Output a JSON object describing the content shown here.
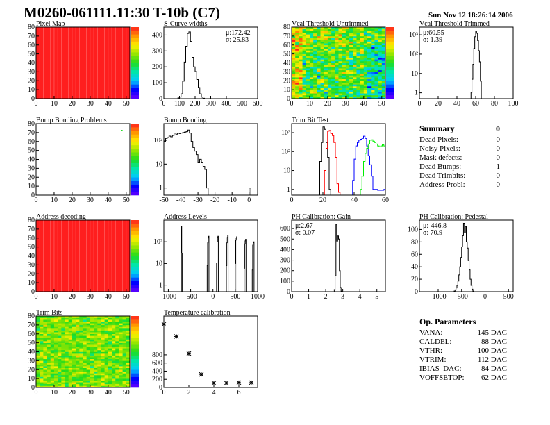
{
  "title": "M0260-061111.11:30 T-10b (C7)",
  "date": "Sun Nov 12 18:26:14 2006",
  "summary": {
    "heading": "Summary",
    "total": "0",
    "rows": [
      {
        "label": "Dead Pixels:",
        "value": "0"
      },
      {
        "label": "Noisy Pixels:",
        "value": "0"
      },
      {
        "label": "Mask defects:",
        "value": "0"
      },
      {
        "label": "Dead Bumps:",
        "value": "1"
      },
      {
        "label": "Dead Trimbits:",
        "value": "0"
      },
      {
        "label": "Address Probl:",
        "value": "0"
      }
    ]
  },
  "op_parameters": {
    "heading": "Op. Parameters",
    "rows": [
      {
        "label": "VANA:",
        "value": "145 DAC"
      },
      {
        "label": "CALDEL:",
        "value": "88 DAC"
      },
      {
        "label": "VTHR:",
        "value": "100 DAC"
      },
      {
        "label": "VTRIM:",
        "value": "112 DAC"
      },
      {
        "label": "IBIAS_DAC:",
        "value": "84 DAC"
      },
      {
        "label": "VOFFSETOP:",
        "value": "62 DAC"
      }
    ]
  },
  "colors": {
    "line": "#000000",
    "trim_red": "#ff0000",
    "trim_blue": "#0000ff",
    "trim_green": "#00ee00"
  },
  "chart_data": [
    {
      "title": "Pixel Map",
      "type": "heatmap",
      "xlim": [
        0,
        52
      ],
      "ylim": [
        0,
        80
      ],
      "xticks": [
        0,
        10,
        20,
        30,
        40,
        50
      ],
      "yticks": [
        0,
        10,
        20,
        30,
        40,
        50,
        60,
        70,
        80
      ],
      "zlim": [
        0,
        10
      ],
      "fill": "uniform",
      "value": 10
    },
    {
      "title": "S-Curve widths",
      "type": "bar",
      "xlim": [
        0,
        600
      ],
      "ylim": [
        0,
        450
      ],
      "xticks": [
        0,
        100,
        200,
        300,
        400,
        500,
        600
      ],
      "yticks": [
        0,
        100,
        200,
        300,
        400
      ],
      "stats": [
        "μ:172.42",
        "σ: 25.83"
      ],
      "stats_pos": "top-right",
      "series": [
        {
          "start": 90,
          "width": 10,
          "values": [
            5,
            10,
            30,
            110,
            230,
            330,
            410,
            420,
            360,
            260,
            200,
            170,
            120,
            70,
            30,
            10,
            3
          ]
        }
      ]
    },
    {
      "title": "Vcal Threshold Untrimmed",
      "type": "heatmap",
      "xlim": [
        0,
        52
      ],
      "ylim": [
        0,
        80
      ],
      "xticks": [
        0,
        10,
        20,
        30,
        40,
        50
      ],
      "yticks": [
        0,
        10,
        20,
        30,
        40,
        50,
        60,
        70,
        80
      ],
      "zlim": [
        85,
        122
      ],
      "fill": "random",
      "mean": 104,
      "spread": 6
    },
    {
      "title": "Vcal Threshold Trimmed",
      "type": "bar",
      "log": true,
      "xlim": [
        0,
        100
      ],
      "ylim": [
        0.5,
        2500
      ],
      "xticks": [
        0,
        20,
        40,
        60,
        80,
        100
      ],
      "yticks": [
        1,
        10,
        100,
        1000
      ],
      "ytick_labels": [
        "1",
        "10",
        "10²",
        "10³"
      ],
      "stats": [
        "μ:60.55",
        "σ: 1.39"
      ],
      "stats_pos": "top-left",
      "series": [
        {
          "start": 55,
          "width": 1,
          "values": [
            1,
            5,
            30,
            200,
            800,
            1500,
            1200,
            500,
            150,
            40,
            4
          ]
        }
      ]
    },
    {
      "title": "Bump Bonding Problems",
      "type": "heatmap",
      "xlim": [
        0,
        52
      ],
      "ylim": [
        0,
        80
      ],
      "xticks": [
        0,
        10,
        20,
        30,
        40,
        50
      ],
      "yticks": [
        0,
        10,
        20,
        30,
        40,
        50,
        60,
        70,
        80
      ],
      "zlim": [
        0,
        2
      ],
      "fill": "points",
      "points": [
        {
          "x": 47,
          "y": 72,
          "z": 1
        }
      ]
    },
    {
      "title": "Bump Bonding",
      "type": "bar",
      "log": true,
      "xlim": [
        -50,
        5
      ],
      "ylim": [
        0.5,
        500
      ],
      "xticks": [
        -50,
        -40,
        -30,
        -20,
        -10,
        0
      ],
      "yticks": [
        1,
        10,
        100
      ],
      "ytick_labels": [
        "1",
        "10",
        "10²"
      ],
      "series": [
        {
          "start": -50,
          "width": 1,
          "values": [
            90,
            120,
            130,
            150,
            140,
            160,
            200,
            180,
            200,
            190,
            200,
            210,
            220,
            230,
            270,
            200,
            90,
            50,
            35,
            25,
            12,
            16,
            12,
            8,
            6,
            1
          ]
        },
        {
          "start": 0,
          "width": 1,
          "values": [
            1
          ]
        }
      ]
    },
    {
      "title": "Trim Bit Test",
      "type": "bar",
      "log": true,
      "xlim": [
        0,
        60
      ],
      "ylim": [
        0.5,
        3000
      ],
      "xticks": [
        0,
        20,
        40,
        60
      ],
      "yticks": [
        1,
        10,
        100,
        1000
      ],
      "ytick_labels": [
        "1",
        "10",
        "10²",
        "10³"
      ],
      "series": [
        {
          "color": "line",
          "start": 18,
          "width": 1,
          "values": [
            30,
            300,
            2000,
            1500,
            300,
            50,
            1
          ]
        },
        {
          "color": "trim_red",
          "start": 21,
          "width": 1,
          "values": [
            10,
            150,
            1200,
            1300,
            900,
            700,
            300,
            50,
            2,
            0.7
          ]
        },
        {
          "color": "trim_blue",
          "start": 39,
          "width": 1,
          "values": [
            3,
            40,
            200,
            300,
            400,
            450,
            500,
            650,
            500,
            200,
            60,
            20,
            5,
            1,
            1,
            1,
            0.9,
            0.9,
            0.9,
            0.9,
            1
          ]
        },
        {
          "color": "trim_green",
          "start": 44,
          "width": 1,
          "values": [
            1,
            5,
            30,
            80,
            150,
            250,
            400,
            420,
            350,
            300,
            250,
            200,
            180,
            200,
            230,
            200
          ]
        }
      ]
    },
    {
      "type": "text"
    },
    {
      "title": "Address decoding",
      "type": "heatmap",
      "xlim": [
        0,
        52
      ],
      "ylim": [
        0,
        80
      ],
      "xticks": [
        0,
        10,
        20,
        30,
        40,
        50
      ],
      "yticks": [
        0,
        10,
        20,
        30,
        40,
        50,
        60,
        70,
        80
      ],
      "zlim": [
        0,
        1
      ],
      "fill": "uniform",
      "value": 1
    },
    {
      "title": "Address Levels",
      "type": "bar",
      "log": true,
      "xlim": [
        -1100,
        1000
      ],
      "ylim": [
        0.5,
        1000
      ],
      "xticks": [
        -1000,
        -500,
        0,
        500,
        1000
      ],
      "yticks": [
        1,
        10,
        100
      ],
      "ytick_labels": [
        "1",
        "10",
        "10²"
      ],
      "series": [
        {
          "start": -710,
          "width": 10,
          "values": [
            500,
            30
          ]
        },
        {
          "start": -130,
          "width": 10,
          "values": [
            8,
            90,
            150,
            180
          ]
        },
        {
          "start": 80,
          "width": 10,
          "values": [
            10,
            100,
            160,
            180
          ]
        },
        {
          "start": 300,
          "width": 10,
          "values": [
            8,
            90,
            160,
            190
          ]
        },
        {
          "start": 500,
          "width": 10,
          "values": [
            10,
            120,
            150,
            170
          ]
        },
        {
          "start": 700,
          "width": 10,
          "values": [
            6,
            80,
            110,
            130
          ]
        },
        {
          "start": 880,
          "width": 10,
          "values": [
            5,
            70,
            90,
            100
          ]
        }
      ]
    },
    {
      "title": "PH Calibration: Gain",
      "type": "bar",
      "xlim": [
        0,
        5.5
      ],
      "ylim": [
        0,
        680
      ],
      "xticks": [
        0,
        1,
        2,
        3,
        4,
        5
      ],
      "yticks": [
        0,
        100,
        200,
        300,
        400,
        500,
        600
      ],
      "stats": [
        "μ:2.67",
        "σ: 0.07"
      ],
      "stats_pos": "top-left",
      "series": [
        {
          "start": 2.5,
          "width": 0.05,
          "values": [
            20,
            150,
            640,
            480,
            530,
            500,
            200,
            40,
            5
          ]
        }
      ]
    },
    {
      "title": "PH Calibration: Pedestal",
      "type": "bar",
      "xlim": [
        -1400,
        600
      ],
      "ylim": [
        0,
        115
      ],
      "xticks": [
        -1000,
        -500,
        0,
        500
      ],
      "yticks": [
        0,
        20,
        40,
        60,
        80,
        100
      ],
      "stats": [
        "μ:-446.8",
        "σ: 70.9"
      ],
      "stats_pos": "top-left",
      "series": [
        {
          "start": -660,
          "width": 20,
          "values": [
            1,
            3,
            6,
            10,
            17,
            27,
            40,
            55,
            72,
            90,
            110,
            95,
            105,
            80,
            70,
            50,
            35,
            20,
            10,
            4,
            1
          ]
        }
      ]
    },
    {
      "title": "Trim Bits",
      "type": "heatmap",
      "xlim": [
        0,
        52
      ],
      "ylim": [
        0,
        80
      ],
      "xticks": [
        0,
        10,
        20,
        30,
        40,
        50
      ],
      "yticks": [
        0,
        10,
        20,
        30,
        40,
        50,
        60,
        70,
        80
      ],
      "zlim": [
        0,
        16
      ],
      "fill": "random",
      "mean": 9.5,
      "spread": 1.6
    },
    {
      "title": "Temperature calibration",
      "type": "scatter",
      "xlim": [
        0,
        7.5
      ],
      "ylim": [
        0,
        1750
      ],
      "xticks": [
        0,
        2,
        4,
        6
      ],
      "yticks": [
        0,
        200,
        400,
        600,
        800
      ],
      "x": [
        0,
        1,
        2,
        3,
        4,
        5,
        6,
        7
      ],
      "y": [
        1550,
        1250,
        830,
        320,
        110,
        110,
        120,
        120
      ]
    }
  ]
}
